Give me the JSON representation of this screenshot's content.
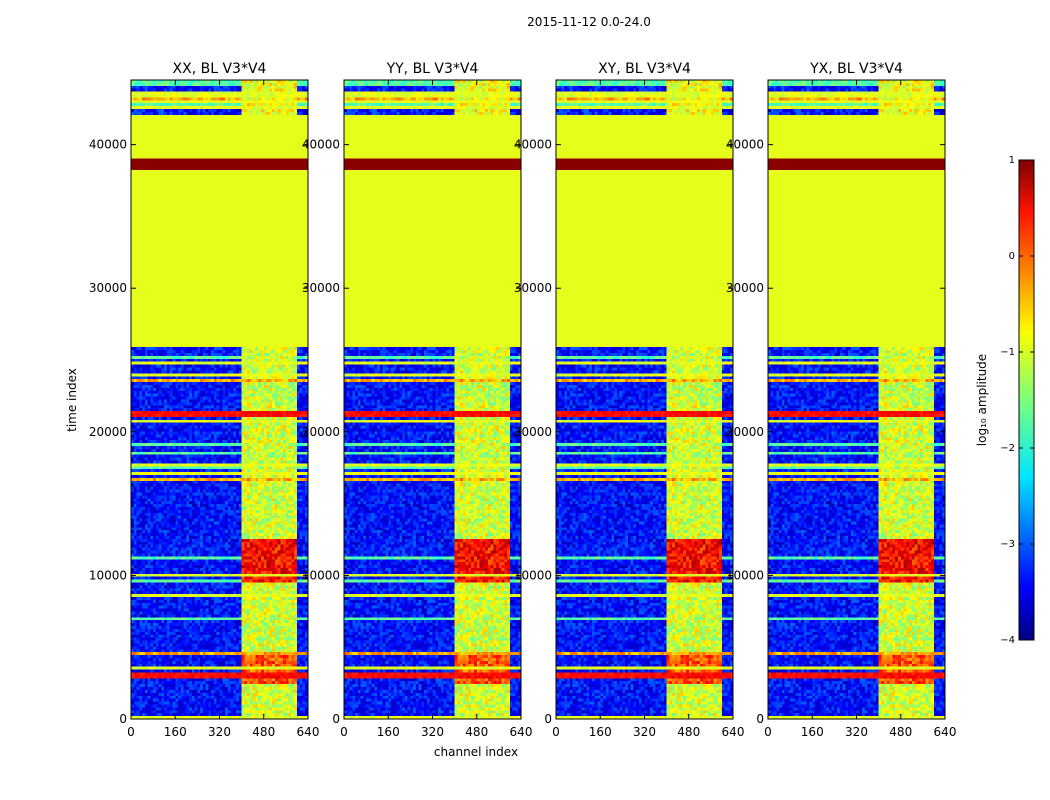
{
  "chart_data": {
    "type": "heatmap",
    "suptitle": "2015-11-12 0.0-24.0",
    "xlabel": "channel index",
    "ylabel": "time index",
    "xlim": [
      0,
      640
    ],
    "ylim": [
      0,
      44500
    ],
    "xticks": [
      0,
      160,
      320,
      480,
      640
    ],
    "yticks": [
      0,
      10000,
      20000,
      30000,
      40000
    ],
    "panels": [
      {
        "title": "XX, BL V3*V4"
      },
      {
        "title": "YY, BL V3*V4"
      },
      {
        "title": "XY, BL V3*V4"
      },
      {
        "title": "YX, BL V3*V4"
      }
    ],
    "colorbar": {
      "label": "log₁₀ amplitude",
      "range": [
        -4,
        1
      ],
      "ticks": [
        1,
        0,
        -1,
        -2,
        -3,
        -4
      ],
      "tick_labels": [
        "1",
        "0",
        "−1",
        "−2",
        "−3",
        "−4"
      ],
      "colormap": "jet"
    },
    "features": {
      "flagged_time_band": [
        25800,
        42000
      ],
      "flagged_value": -1.0,
      "saturated_time_band": [
        38300,
        39000
      ],
      "sparse_top_band": [
        42000,
        44500
      ],
      "bright_channel_band": [
        400,
        600
      ],
      "bright_time_band_1": [
        9500,
        12500
      ],
      "bright_time_band_2": [
        2500,
        4500
      ],
      "strong_horizontal_rows": [
        3000,
        21300,
        39000
      ],
      "background_level": -3.3
    }
  }
}
